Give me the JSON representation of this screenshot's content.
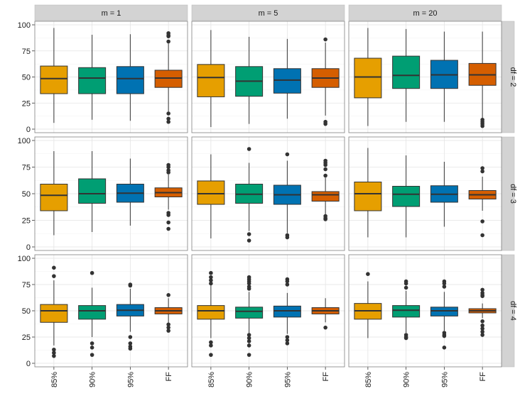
{
  "chart_data": {
    "type": "boxplot",
    "facet_cols_label": [
      "m = 1",
      "m = 5",
      "m = 20"
    ],
    "facet_rows_label": [
      "df = 2",
      "df = 3",
      "df = 4"
    ],
    "categories": [
      "85%",
      "90%",
      "95%",
      "FF"
    ],
    "colors": [
      "#E69F00",
      "#009E73",
      "#0072B2",
      "#D55E00"
    ],
    "ylim": [
      0,
      100
    ],
    "yticks": [
      "0",
      "25",
      "50",
      "75",
      "100"
    ],
    "panels": [
      {
        "row": 0,
        "col": 0,
        "boxes": [
          {
            "q1": 34,
            "median": 48.5,
            "q3": 60.5,
            "low": 6,
            "high": 97,
            "outliers": []
          },
          {
            "q1": 34,
            "median": 49,
            "q3": 59,
            "low": 9,
            "high": 90.5,
            "outliers": []
          },
          {
            "q1": 34,
            "median": 48.5,
            "q3": 60,
            "low": 8,
            "high": 91,
            "outliers": []
          },
          {
            "q1": 40,
            "median": 49,
            "q3": 56.5,
            "low": 17,
            "high": 82,
            "outliers": [
              92,
              90,
              89,
              84,
              15,
              10,
              7
            ]
          }
        ]
      },
      {
        "row": 0,
        "col": 1,
        "boxes": [
          {
            "q1": 31,
            "median": 49.5,
            "q3": 62,
            "low": 2,
            "high": 95,
            "outliers": []
          },
          {
            "q1": 31.5,
            "median": 46,
            "q3": 60,
            "low": 5,
            "high": 88.5,
            "outliers": []
          },
          {
            "q1": 34.5,
            "median": 47,
            "q3": 58,
            "low": 10,
            "high": 86.5,
            "outliers": []
          },
          {
            "q1": 40,
            "median": 49,
            "q3": 58,
            "low": 13,
            "high": 83,
            "outliers": [
              86,
              7,
              5
            ]
          }
        ]
      },
      {
        "row": 0,
        "col": 2,
        "boxes": [
          {
            "q1": 30,
            "median": 50,
            "q3": 68,
            "low": 3,
            "high": 97,
            "outliers": []
          },
          {
            "q1": 39,
            "median": 51.5,
            "q3": 70,
            "low": 7,
            "high": 96,
            "outliers": []
          },
          {
            "q1": 39,
            "median": 52,
            "q3": 66,
            "low": 7,
            "high": 93.5,
            "outliers": []
          },
          {
            "q1": 42,
            "median": 52,
            "q3": 63,
            "low": 10,
            "high": 93.5,
            "outliers": [
              9,
              7,
              5,
              3
            ]
          }
        ]
      },
      {
        "row": 1,
        "col": 0,
        "boxes": [
          {
            "q1": 34,
            "median": 48.5,
            "q3": 59,
            "low": 11,
            "high": 90,
            "outliers": []
          },
          {
            "q1": 41,
            "median": 50,
            "q3": 64,
            "low": 14,
            "high": 90,
            "outliers": []
          },
          {
            "q1": 42,
            "median": 50.5,
            "q3": 59,
            "low": 20,
            "high": 83,
            "outliers": []
          },
          {
            "q1": 47,
            "median": 51,
            "q3": 55.5,
            "low": 35,
            "high": 68,
            "outliers": [
              77,
              75,
              72,
              70,
              32,
              30,
              23,
              17
            ]
          }
        ]
      },
      {
        "row": 1,
        "col": 1,
        "boxes": [
          {
            "q1": 40,
            "median": 50,
            "q3": 62,
            "low": 8,
            "high": 87,
            "outliers": []
          },
          {
            "q1": 41,
            "median": 49.5,
            "q3": 59,
            "low": 15,
            "high": 79,
            "outliers": [
              92,
              12,
              6
            ]
          },
          {
            "q1": 40,
            "median": 49,
            "q3": 58,
            "low": 13,
            "high": 81,
            "outliers": [
              87,
              11,
              9
            ]
          },
          {
            "q1": 43,
            "median": 49,
            "q3": 52,
            "low": 30,
            "high": 65,
            "outliers": [
              81,
              79,
              77,
              73,
              67,
              29,
              27,
              26
            ]
          }
        ]
      },
      {
        "row": 1,
        "col": 2,
        "boxes": [
          {
            "q1": 34,
            "median": 50,
            "q3": 61,
            "low": 9,
            "high": 93,
            "outliers": []
          },
          {
            "q1": 38,
            "median": 49.5,
            "q3": 57,
            "low": 9,
            "high": 86,
            "outliers": []
          },
          {
            "q1": 42,
            "median": 49.5,
            "q3": 57.5,
            "low": 19,
            "high": 80,
            "outliers": []
          },
          {
            "q1": 45,
            "median": 49,
            "q3": 53,
            "low": 34,
            "high": 66,
            "outliers": [
              74,
              71,
              24,
              11
            ]
          }
        ]
      },
      {
        "row": 2,
        "col": 0,
        "boxes": [
          {
            "q1": 39,
            "median": 50,
            "q3": 56,
            "low": 17,
            "high": 79,
            "outliers": [
              91,
              83,
              13,
              10,
              7
            ]
          },
          {
            "q1": 42,
            "median": 50,
            "q3": 55,
            "low": 25,
            "high": 72,
            "outliers": [
              86,
              19,
              15,
              8
            ]
          },
          {
            "q1": 45,
            "median": 50.5,
            "q3": 56,
            "low": 30,
            "high": 71,
            "outliers": [
              75,
              74,
              25,
              19,
              16,
              14
            ]
          },
          {
            "q1": 47,
            "median": 50,
            "q3": 53,
            "low": 38,
            "high": 62,
            "outliers": [
              65,
              37,
              34,
              31
            ]
          }
        ]
      },
      {
        "row": 2,
        "col": 1,
        "boxes": [
          {
            "q1": 42,
            "median": 50,
            "q3": 55,
            "low": 24,
            "high": 74,
            "outliers": [
              86,
              82,
              79,
              76,
              20,
              17,
              8
            ]
          },
          {
            "q1": 43,
            "median": 49.5,
            "q3": 53.5,
            "low": 28,
            "high": 68,
            "outliers": [
              82,
              80,
              78,
              76,
              73,
              71,
              27,
              24,
              21,
              17,
              8
            ]
          },
          {
            "q1": 44,
            "median": 50,
            "q3": 54.5,
            "low": 28,
            "high": 67,
            "outliers": [
              80,
              78,
              75,
              25,
              22,
              19
            ]
          },
          {
            "q1": 47,
            "median": 50,
            "q3": 53,
            "low": 39,
            "high": 62,
            "outliers": [
              34
            ]
          }
        ]
      },
      {
        "row": 2,
        "col": 2,
        "boxes": [
          {
            "q1": 42,
            "median": 50,
            "q3": 57,
            "low": 24,
            "high": 78,
            "outliers": [
              85
            ]
          },
          {
            "q1": 44,
            "median": 50.5,
            "q3": 55,
            "low": 29,
            "high": 69,
            "outliers": [
              78,
              76,
              72,
              27,
              25,
              24
            ]
          },
          {
            "q1": 45,
            "median": 50,
            "q3": 53.5,
            "low": 31,
            "high": 68,
            "outliers": [
              78,
              76,
              73,
              29,
              27,
              26,
              15
            ]
          },
          {
            "q1": 48,
            "median": 50,
            "q3": 52,
            "low": 43,
            "high": 57,
            "outliers": [
              70,
              67,
              65,
              64,
              40,
              36,
              33,
              30,
              27
            ]
          }
        ]
      }
    ]
  }
}
